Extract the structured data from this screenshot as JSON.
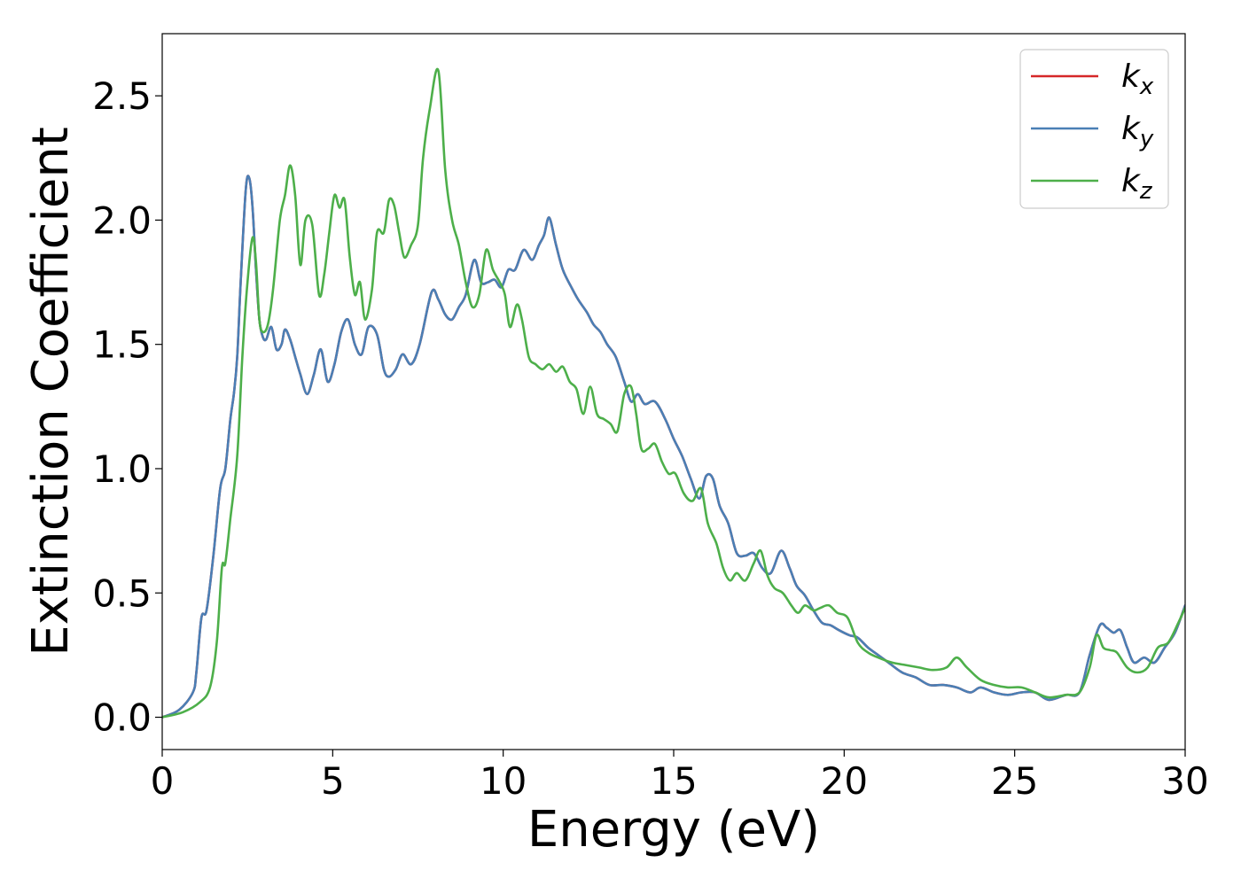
{
  "chart_data": {
    "type": "line",
    "title": "",
    "xlabel": "Energy (eV)",
    "ylabel": "Extinction Coefficient",
    "xlim": [
      0,
      30
    ],
    "ylim": [
      -0.13,
      2.75
    ],
    "xticks": [
      0,
      5,
      10,
      15,
      20,
      25,
      30
    ],
    "xtick_labels": [
      "0",
      "5",
      "10",
      "15",
      "20",
      "25",
      "30"
    ],
    "yticks": [
      0.0,
      0.5,
      1.0,
      1.5,
      2.0,
      2.5
    ],
    "ytick_labels": [
      "0.0",
      "0.5",
      "1.0",
      "1.5",
      "2.0",
      "2.5"
    ],
    "grid": false,
    "legend_position": "top-right",
    "series": [
      {
        "name": "k",
        "subscript": "x",
        "color": "#d62728",
        "x": [
          0,
          0.5,
          0.9,
          1.0,
          1.15,
          1.3,
          1.5,
          1.7,
          1.85,
          2.0,
          2.1,
          2.2,
          2.3,
          2.45,
          2.55,
          2.65,
          2.75,
          2.85,
          2.95,
          3.05,
          3.2,
          3.35,
          3.5,
          3.6,
          3.75,
          3.9,
          4.05,
          4.25,
          4.45,
          4.65,
          4.85,
          5.05,
          5.25,
          5.45,
          5.65,
          5.85,
          6.05,
          6.3,
          6.5,
          6.65,
          6.85,
          7.05,
          7.3,
          7.55,
          7.9,
          8.1,
          8.3,
          8.5,
          8.7,
          8.9,
          9.15,
          9.35,
          9.55,
          9.75,
          9.95,
          10.15,
          10.35,
          10.6,
          10.85,
          11.05,
          11.2,
          11.35,
          11.55,
          11.75,
          12.0,
          12.2,
          12.45,
          12.65,
          12.85,
          13.05,
          13.3,
          13.55,
          13.75,
          13.95,
          14.15,
          14.45,
          14.75,
          15.0,
          15.25,
          15.5,
          15.75,
          15.95,
          16.15,
          16.35,
          16.6,
          16.85,
          17.1,
          17.35,
          17.6,
          17.85,
          18.15,
          18.4,
          18.6,
          18.85,
          19.1,
          19.35,
          19.6,
          19.85,
          20.15,
          20.4,
          20.7,
          21.0,
          21.3,
          21.7,
          22.1,
          22.5,
          22.9,
          23.3,
          23.7,
          24.0,
          24.4,
          24.8,
          25.2,
          25.6,
          26.0,
          26.5,
          26.9,
          27.2,
          27.5,
          27.7,
          27.9,
          28.1,
          28.3,
          28.5,
          28.8,
          29.1,
          29.4,
          29.7,
          30.0
        ],
        "y": [
          0.0,
          0.03,
          0.1,
          0.18,
          0.4,
          0.43,
          0.65,
          0.92,
          1.0,
          1.2,
          1.3,
          1.45,
          1.75,
          2.12,
          2.17,
          2.05,
          1.8,
          1.6,
          1.53,
          1.52,
          1.57,
          1.48,
          1.5,
          1.56,
          1.52,
          1.45,
          1.38,
          1.3,
          1.38,
          1.48,
          1.35,
          1.42,
          1.55,
          1.6,
          1.5,
          1.46,
          1.57,
          1.54,
          1.4,
          1.37,
          1.4,
          1.46,
          1.42,
          1.5,
          1.71,
          1.68,
          1.62,
          1.6,
          1.65,
          1.7,
          1.84,
          1.75,
          1.75,
          1.76,
          1.73,
          1.8,
          1.8,
          1.88,
          1.84,
          1.9,
          1.94,
          2.01,
          1.9,
          1.8,
          1.73,
          1.68,
          1.63,
          1.58,
          1.55,
          1.5,
          1.45,
          1.35,
          1.27,
          1.3,
          1.26,
          1.27,
          1.2,
          1.12,
          1.05,
          0.96,
          0.88,
          0.97,
          0.96,
          0.85,
          0.78,
          0.66,
          0.65,
          0.66,
          0.6,
          0.58,
          0.67,
          0.6,
          0.53,
          0.49,
          0.43,
          0.38,
          0.37,
          0.35,
          0.33,
          0.32,
          0.28,
          0.25,
          0.22,
          0.18,
          0.16,
          0.13,
          0.13,
          0.12,
          0.1,
          0.12,
          0.1,
          0.09,
          0.1,
          0.1,
          0.07,
          0.09,
          0.1,
          0.25,
          0.37,
          0.36,
          0.34,
          0.35,
          0.28,
          0.22,
          0.24,
          0.22,
          0.28,
          0.34,
          0.45
        ]
      },
      {
        "name": "k",
        "subscript": "y",
        "color": "#4a7fb5",
        "x": [
          0,
          0.5,
          0.9,
          1.0,
          1.15,
          1.3,
          1.5,
          1.7,
          1.85,
          2.0,
          2.1,
          2.2,
          2.3,
          2.45,
          2.55,
          2.65,
          2.75,
          2.85,
          2.95,
          3.05,
          3.2,
          3.35,
          3.5,
          3.6,
          3.75,
          3.9,
          4.05,
          4.25,
          4.45,
          4.65,
          4.85,
          5.05,
          5.25,
          5.45,
          5.65,
          5.85,
          6.05,
          6.3,
          6.5,
          6.65,
          6.85,
          7.05,
          7.3,
          7.55,
          7.9,
          8.1,
          8.3,
          8.5,
          8.7,
          8.9,
          9.15,
          9.35,
          9.55,
          9.75,
          9.95,
          10.15,
          10.35,
          10.6,
          10.85,
          11.05,
          11.2,
          11.35,
          11.55,
          11.75,
          12.0,
          12.2,
          12.45,
          12.65,
          12.85,
          13.05,
          13.3,
          13.55,
          13.75,
          13.95,
          14.15,
          14.45,
          14.75,
          15.0,
          15.25,
          15.5,
          15.75,
          15.95,
          16.15,
          16.35,
          16.6,
          16.85,
          17.1,
          17.35,
          17.6,
          17.85,
          18.15,
          18.4,
          18.6,
          18.85,
          19.1,
          19.35,
          19.6,
          19.85,
          20.15,
          20.4,
          20.7,
          21.0,
          21.3,
          21.7,
          22.1,
          22.5,
          22.9,
          23.3,
          23.7,
          24.0,
          24.4,
          24.8,
          25.2,
          25.6,
          26.0,
          26.5,
          26.9,
          27.2,
          27.5,
          27.7,
          27.9,
          28.1,
          28.3,
          28.5,
          28.8,
          29.1,
          29.4,
          29.7,
          30.0
        ],
        "y": [
          0.0,
          0.03,
          0.1,
          0.18,
          0.4,
          0.43,
          0.65,
          0.92,
          1.0,
          1.2,
          1.3,
          1.45,
          1.75,
          2.12,
          2.17,
          2.05,
          1.8,
          1.6,
          1.53,
          1.52,
          1.57,
          1.48,
          1.5,
          1.56,
          1.52,
          1.45,
          1.38,
          1.3,
          1.38,
          1.48,
          1.35,
          1.42,
          1.55,
          1.6,
          1.5,
          1.46,
          1.57,
          1.54,
          1.4,
          1.37,
          1.4,
          1.46,
          1.42,
          1.5,
          1.71,
          1.68,
          1.62,
          1.6,
          1.65,
          1.7,
          1.84,
          1.75,
          1.75,
          1.76,
          1.73,
          1.8,
          1.8,
          1.88,
          1.84,
          1.9,
          1.94,
          2.01,
          1.9,
          1.8,
          1.73,
          1.68,
          1.63,
          1.58,
          1.55,
          1.5,
          1.45,
          1.35,
          1.27,
          1.3,
          1.26,
          1.27,
          1.2,
          1.12,
          1.05,
          0.96,
          0.88,
          0.97,
          0.96,
          0.85,
          0.78,
          0.66,
          0.65,
          0.66,
          0.6,
          0.58,
          0.67,
          0.6,
          0.53,
          0.49,
          0.43,
          0.38,
          0.37,
          0.35,
          0.33,
          0.32,
          0.28,
          0.25,
          0.22,
          0.18,
          0.16,
          0.13,
          0.13,
          0.12,
          0.1,
          0.12,
          0.1,
          0.09,
          0.1,
          0.1,
          0.07,
          0.09,
          0.1,
          0.25,
          0.37,
          0.36,
          0.34,
          0.35,
          0.28,
          0.22,
          0.24,
          0.22,
          0.28,
          0.34,
          0.45
        ]
      },
      {
        "name": "k",
        "subscript": "z",
        "color": "#4daf4a",
        "x": [
          0,
          0.6,
          1.1,
          1.4,
          1.6,
          1.75,
          1.85,
          2.0,
          2.2,
          2.35,
          2.5,
          2.65,
          2.75,
          2.85,
          2.95,
          3.1,
          3.25,
          3.45,
          3.6,
          3.75,
          3.9,
          4.05,
          4.2,
          4.4,
          4.6,
          4.75,
          4.9,
          5.05,
          5.2,
          5.35,
          5.5,
          5.65,
          5.8,
          5.95,
          6.15,
          6.3,
          6.5,
          6.65,
          6.8,
          6.95,
          7.1,
          7.3,
          7.5,
          7.65,
          7.85,
          8.1,
          8.3,
          8.5,
          8.7,
          8.9,
          9.1,
          9.3,
          9.5,
          9.7,
          9.9,
          10.05,
          10.2,
          10.4,
          10.55,
          10.75,
          10.95,
          11.15,
          11.35,
          11.55,
          11.75,
          11.95,
          12.15,
          12.35,
          12.55,
          12.75,
          12.95,
          13.15,
          13.35,
          13.55,
          13.75,
          13.9,
          14.05,
          14.25,
          14.45,
          14.65,
          14.85,
          15.05,
          15.3,
          15.55,
          15.8,
          16.0,
          16.25,
          16.45,
          16.65,
          16.85,
          17.1,
          17.35,
          17.55,
          17.75,
          17.95,
          18.2,
          18.45,
          18.65,
          18.85,
          19.1,
          19.3,
          19.55,
          19.8,
          20.1,
          20.4,
          20.7,
          21.0,
          21.4,
          21.8,
          22.2,
          22.6,
          23.0,
          23.3,
          23.6,
          24.0,
          24.4,
          24.8,
          25.2,
          25.6,
          26.0,
          26.5,
          26.9,
          27.2,
          27.4,
          27.6,
          27.8,
          28.0,
          28.3,
          28.6,
          28.9,
          29.2,
          29.5,
          29.8,
          30.0
        ],
        "y": [
          0.0,
          0.02,
          0.06,
          0.12,
          0.3,
          0.6,
          0.62,
          0.8,
          1.05,
          1.45,
          1.75,
          1.93,
          1.83,
          1.6,
          1.55,
          1.58,
          1.72,
          2.0,
          2.1,
          2.22,
          2.1,
          1.82,
          2.0,
          1.98,
          1.7,
          1.78,
          1.95,
          2.1,
          2.05,
          2.08,
          1.85,
          1.7,
          1.75,
          1.6,
          1.72,
          1.95,
          1.95,
          2.08,
          2.06,
          1.95,
          1.85,
          1.9,
          1.98,
          2.25,
          2.45,
          2.6,
          2.2,
          2.0,
          1.9,
          1.75,
          1.65,
          1.7,
          1.88,
          1.8,
          1.75,
          1.7,
          1.57,
          1.66,
          1.6,
          1.45,
          1.42,
          1.4,
          1.42,
          1.39,
          1.41,
          1.35,
          1.32,
          1.22,
          1.33,
          1.22,
          1.2,
          1.18,
          1.15,
          1.3,
          1.33,
          1.22,
          1.08,
          1.08,
          1.1,
          1.03,
          0.98,
          0.98,
          0.9,
          0.87,
          0.92,
          0.78,
          0.7,
          0.6,
          0.55,
          0.58,
          0.55,
          0.62,
          0.67,
          0.57,
          0.52,
          0.5,
          0.45,
          0.42,
          0.45,
          0.43,
          0.44,
          0.45,
          0.42,
          0.4,
          0.3,
          0.26,
          0.24,
          0.22,
          0.21,
          0.2,
          0.19,
          0.2,
          0.24,
          0.2,
          0.15,
          0.13,
          0.12,
          0.12,
          0.1,
          0.08,
          0.09,
          0.1,
          0.2,
          0.33,
          0.28,
          0.27,
          0.26,
          0.2,
          0.18,
          0.2,
          0.28,
          0.3,
          0.38,
          0.44
        ]
      }
    ]
  }
}
